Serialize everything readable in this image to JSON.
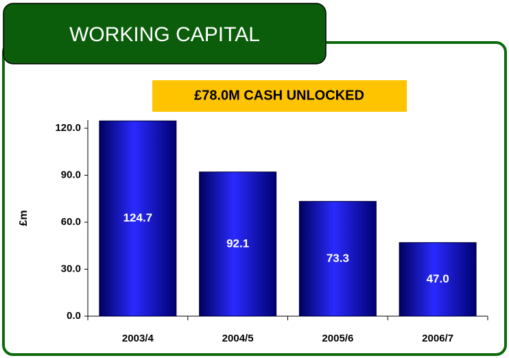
{
  "chart_data": {
    "type": "bar",
    "title": "WORKING CAPITAL",
    "annotation": "£78.0M CASH UNLOCKED",
    "ylabel": "£m",
    "categories": [
      "2003/4",
      "2004/5",
      "2005/6",
      "2006/7"
    ],
    "values": [
      124.7,
      92.1,
      73.3,
      47.0
    ],
    "value_labels": [
      "124.7",
      "92.1",
      "73.3",
      "47.0"
    ],
    "color": "#1010d0",
    "ylim": [
      0,
      120
    ],
    "yticks": [
      {
        "value": 0,
        "label": "0.0"
      },
      {
        "value": 30,
        "label": "30.0"
      },
      {
        "value": 60,
        "label": "60.0"
      },
      {
        "value": 90,
        "label": "90.0"
      },
      {
        "value": 120,
        "label": "120.0"
      }
    ],
    "grid": false
  }
}
